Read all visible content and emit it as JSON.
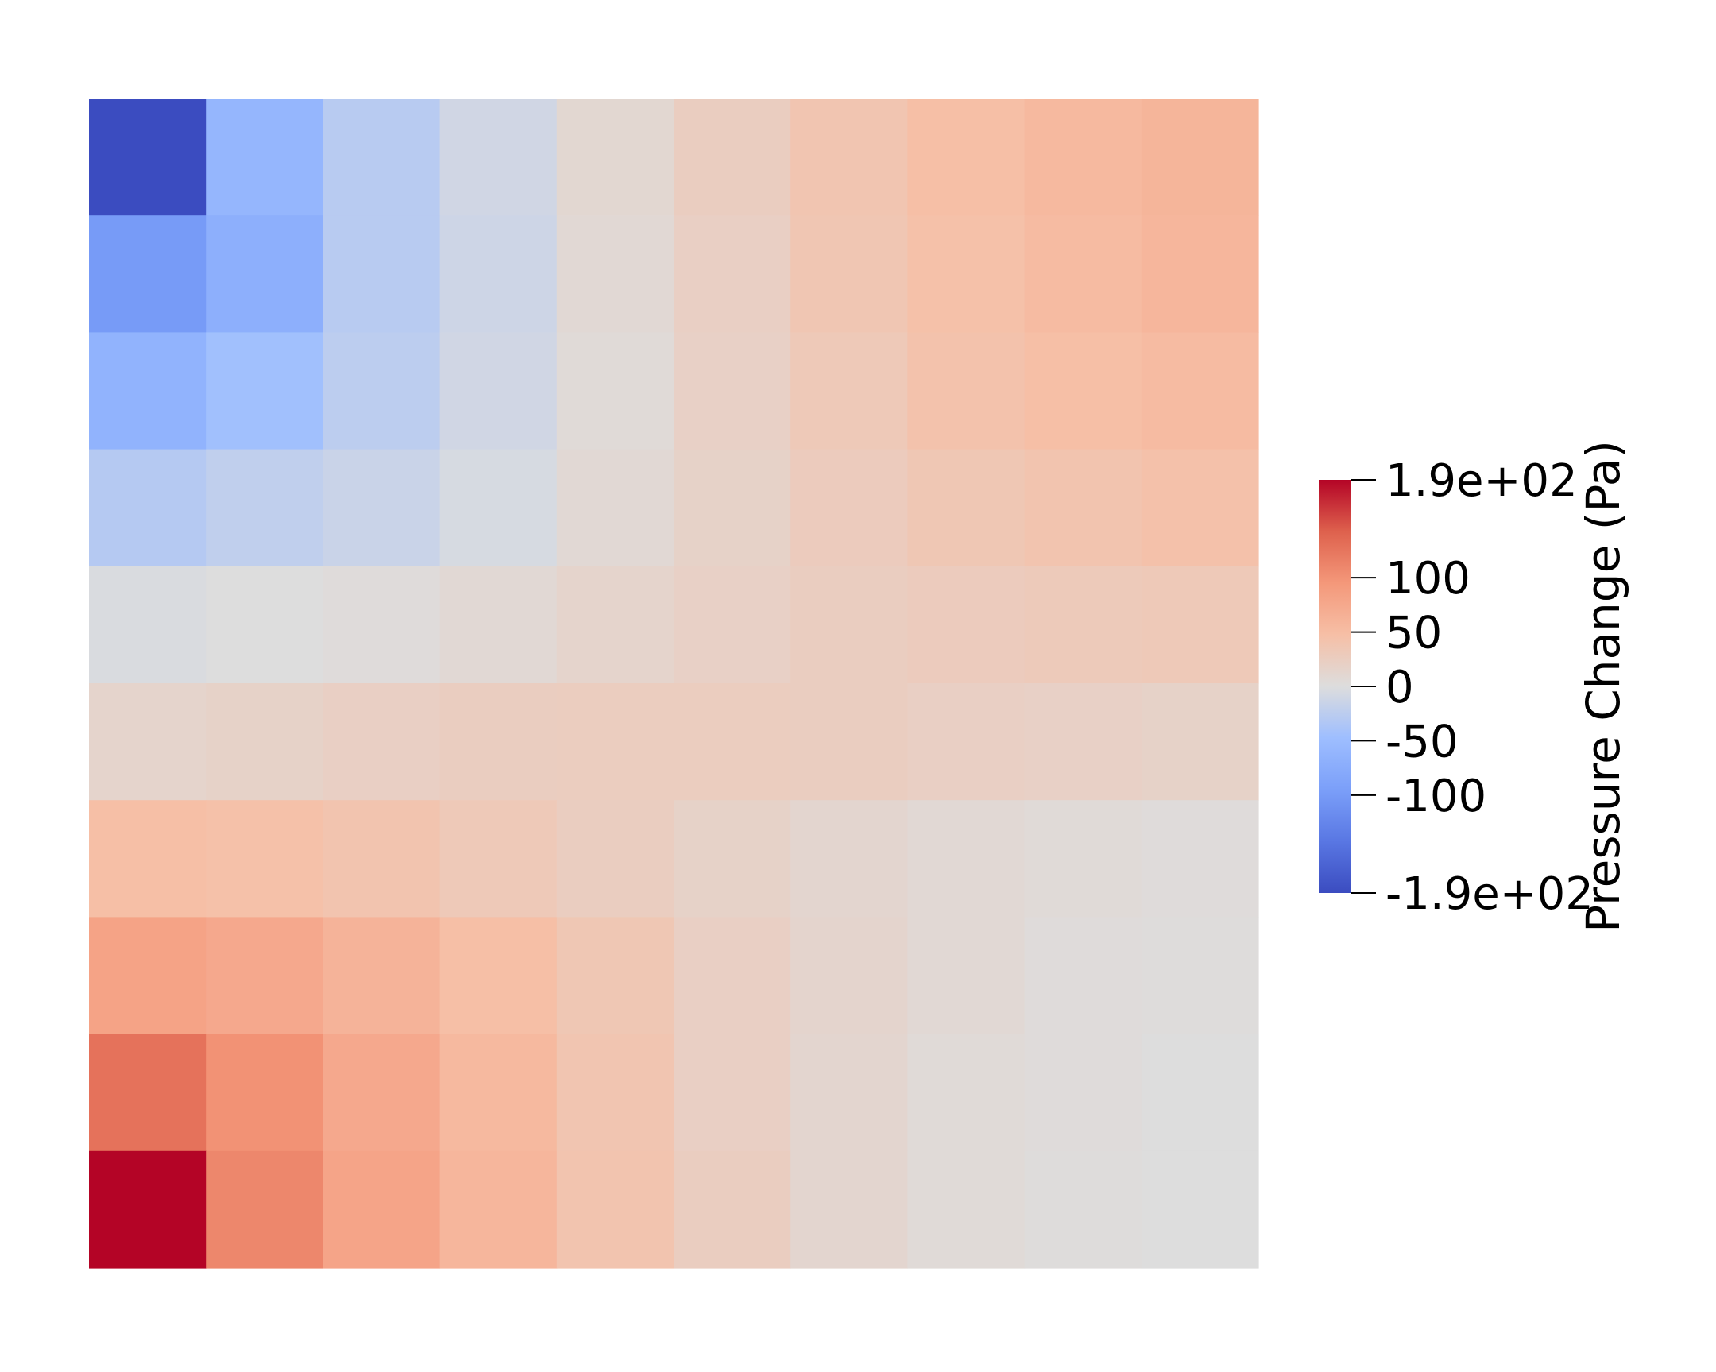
{
  "chart_data": {
    "type": "heatmap",
    "grid": {
      "rows": 10,
      "cols": 10
    },
    "values": [
      [
        -190,
        -60,
        -28,
        -10,
        10,
        25,
        38,
        48,
        55,
        60
      ],
      [
        -100,
        -70,
        -28,
        -12,
        8,
        22,
        36,
        45,
        52,
        58
      ],
      [
        -65,
        -45,
        -25,
        -10,
        5,
        20,
        32,
        42,
        48,
        52
      ],
      [
        -30,
        -22,
        -15,
        -5,
        8,
        18,
        28,
        35,
        40,
        44
      ],
      [
        -3,
        0,
        3,
        8,
        15,
        20,
        25,
        28,
        30,
        32
      ],
      [
        15,
        18,
        22,
        25,
        26,
        26,
        25,
        22,
        20,
        18
      ],
      [
        48,
        45,
        40,
        32,
        25,
        18,
        12,
        8,
        5,
        3
      ],
      [
        82,
        75,
        62,
        48,
        35,
        22,
        14,
        8,
        3,
        2
      ],
      [
        128,
        100,
        75,
        55,
        38,
        22,
        12,
        5,
        3,
        0
      ],
      [
        190,
        110,
        80,
        58,
        40,
        25,
        12,
        5,
        2,
        0
      ]
    ],
    "colorbar": {
      "title": "Pressure Change (Pa)",
      "range": [
        -190,
        190
      ],
      "ticks": [
        {
          "value": 190,
          "label": "1.9e+02"
        },
        {
          "value": 100,
          "label": "100"
        },
        {
          "value": 50,
          "label": "50"
        },
        {
          "value": 0,
          "label": "0"
        },
        {
          "value": -50,
          "label": "-50"
        },
        {
          "value": -100,
          "label": "-100"
        },
        {
          "value": -190,
          "label": "-1.9e+02"
        }
      ],
      "colormap": "cool-to-warm",
      "colors": {
        "low": "#3b4cc0",
        "mid": "#dddddd",
        "high": "#b40426"
      }
    }
  }
}
